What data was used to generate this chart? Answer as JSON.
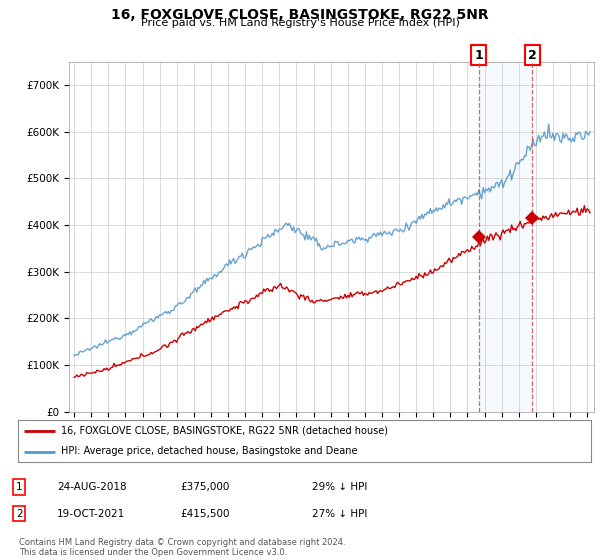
{
  "title": "16, FOXGLOVE CLOSE, BASINGSTOKE, RG22 5NR",
  "subtitle": "Price paid vs. HM Land Registry's House Price Index (HPI)",
  "ylim": [
    0,
    750000
  ],
  "yticks": [
    0,
    100000,
    200000,
    300000,
    400000,
    500000,
    600000,
    700000
  ],
  "sale1_date": "24-AUG-2018",
  "sale1_price": 375000,
  "sale1_x_year": 2018.65,
  "sale2_date": "19-OCT-2021",
  "sale2_price": 415500,
  "sale2_x_year": 2021.8,
  "sale1_hpi_pct": "29% ↓ HPI",
  "sale2_hpi_pct": "27% ↓ HPI",
  "legend_red": "16, FOXGLOVE CLOSE, BASINGSTOKE, RG22 5NR (detached house)",
  "legend_blue": "HPI: Average price, detached house, Basingstoke and Deane",
  "red_color": "#cc0000",
  "blue_color": "#5599cc",
  "shade_color": "#ddeeff",
  "dashed_line_color": "#cc4444",
  "footnote": "Contains HM Land Registry data © Crown copyright and database right 2024.\nThis data is licensed under the Open Government Licence v3.0.",
  "bg_color": "#ffffff",
  "grid_color": "#cccccc",
  "xmin": 1995,
  "xmax": 2025
}
